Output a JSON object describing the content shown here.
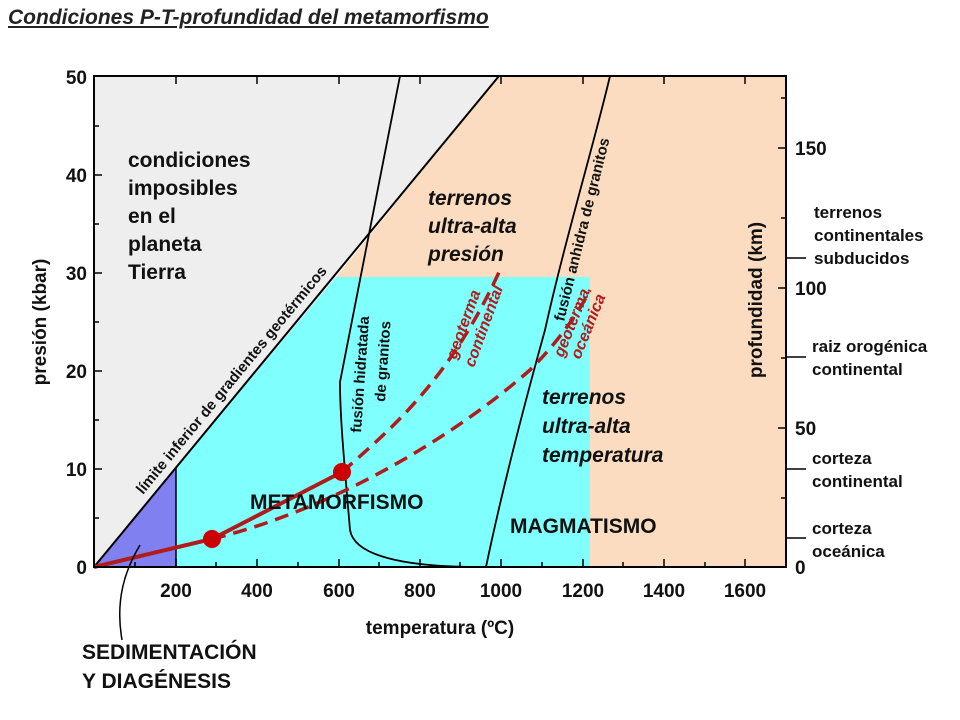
{
  "title": "Condiciones P-T-profundidad del metamorfismo",
  "axes": {
    "x_label": "temperatura (ºC)",
    "x_ticks": [
      "200",
      "400",
      "600",
      "800",
      "1000",
      "1200",
      "1400",
      "1600"
    ],
    "y_label": "presión (kbar)",
    "y_ticks": [
      "0",
      "10",
      "20",
      "30",
      "40",
      "50"
    ],
    "y2_label": "profundidad (km)",
    "y2_ticks": [
      "0",
      "50",
      "100",
      "150"
    ]
  },
  "regions": {
    "impossible": [
      "condiciones",
      "imposibles",
      "en el",
      "planeta",
      "Tierra"
    ],
    "uhp": [
      "terrenos",
      "ultra-alta",
      "presión"
    ],
    "uht": [
      "terrenos",
      "ultra-alta",
      "temperatura"
    ],
    "metamorfismo": "METAMORFISMO",
    "magmatismo": "MAGMATISMO",
    "sedimentacion": [
      "SEDIMENTACIÓN",
      "Y DIAGÉNESIS"
    ]
  },
  "curves": {
    "limit": "límite inferior de gradientes geotérmicos",
    "wet_melt": [
      "fusión hidratada",
      "de granitos"
    ],
    "dry_melt": "fusión anhidra de granitos",
    "geotherm_cont": [
      "geoterma",
      "continental"
    ],
    "geotherm_ocean": [
      "geoterma",
      "oceánica"
    ]
  },
  "depth_labels": {
    "subducted": [
      "terrenos",
      "continentales",
      "subducidos"
    ],
    "orogenic": [
      "raiz orogénica",
      "continental"
    ],
    "cont_crust": [
      "corteza",
      "continental"
    ],
    "ocean_crust": [
      "corteza",
      "oceánica"
    ]
  },
  "colors": {
    "impossible": "#eeeeee",
    "uhp_magmatism": "#fcdcc0",
    "metamorphism": "#80ffff",
    "sedimentation": "#8080f0",
    "geotherm": "#b01c1c"
  },
  "chart_data": {
    "type": "line",
    "x_range": [
      0,
      1700
    ],
    "y_range": [
      0,
      50
    ],
    "geotherm_points": [
      [
        300,
        3
      ],
      [
        600,
        10
      ]
    ]
  }
}
